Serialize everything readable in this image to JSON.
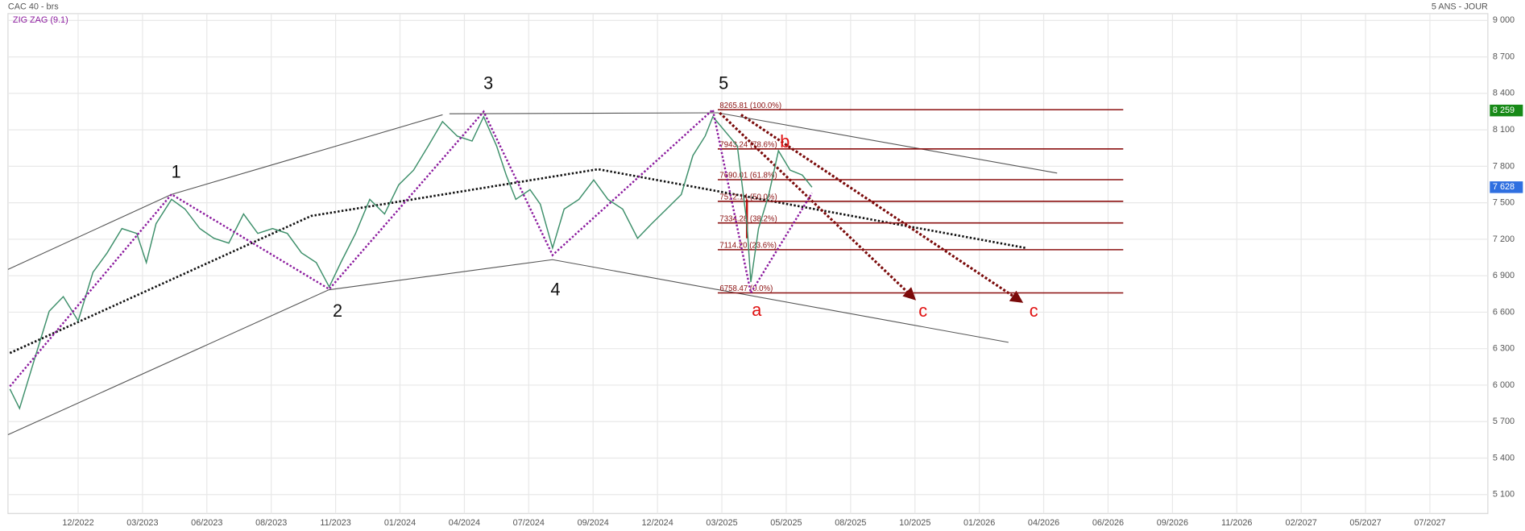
{
  "chart_data": {
    "type": "line",
    "title": "CAC 40 - brs",
    "subtitle": "5 ANS - JOUR",
    "xlim": [
      -1.09,
      21.9
    ],
    "xticks": [
      {
        "value": 0,
        "label": "12/2022"
      },
      {
        "value": 1,
        "label": "03/2023"
      },
      {
        "value": 2,
        "label": "06/2023"
      },
      {
        "value": 3,
        "label": "08/2023"
      },
      {
        "value": 4,
        "label": "11/2023"
      },
      {
        "value": 5,
        "label": "01/2024"
      },
      {
        "value": 6,
        "label": "04/2024"
      },
      {
        "value": 7,
        "label": "07/2024"
      },
      {
        "value": 8,
        "label": "09/2024"
      },
      {
        "value": 9,
        "label": "12/2024"
      },
      {
        "value": 10,
        "label": "03/2025"
      },
      {
        "value": 11,
        "label": "05/2025"
      },
      {
        "value": 12,
        "label": "08/2025"
      },
      {
        "value": 13,
        "label": "10/2025"
      },
      {
        "value": 14,
        "label": "01/2026"
      },
      {
        "value": 15,
        "label": "04/2026"
      },
      {
        "value": 16,
        "label": "06/2026"
      },
      {
        "value": 17,
        "label": "09/2026"
      },
      {
        "value": 18,
        "label": "11/2026"
      },
      {
        "value": 19,
        "label": "02/2027"
      },
      {
        "value": 20,
        "label": "05/2027"
      },
      {
        "value": 21,
        "label": "07/2027"
      }
    ],
    "ylim": [
      4944,
      9056
    ],
    "yticks": [
      {
        "value": 9000,
        "label": "9 000"
      },
      {
        "value": 8700,
        "label": "8 700"
      },
      {
        "value": 8400,
        "label": "8 400"
      },
      {
        "value": 8100,
        "label": "8 100"
      },
      {
        "value": 7800,
        "label": "7 800"
      },
      {
        "value": 7500,
        "label": "7 500"
      },
      {
        "value": 7200,
        "label": "7 200"
      },
      {
        "value": 6900,
        "label": "6 900"
      },
      {
        "value": 6600,
        "label": "6 600"
      },
      {
        "value": 6300,
        "label": "6 300"
      },
      {
        "value": 6000,
        "label": "6 000"
      },
      {
        "value": 5700,
        "label": "5 700"
      },
      {
        "value": 5400,
        "label": "5 400"
      },
      {
        "value": 5100,
        "label": "5 100"
      }
    ],
    "grid": true,
    "series": [
      {
        "color": "#3d8f6a",
        "x": [
          -1.06,
          -0.91,
          -0.68,
          -0.45,
          -0.23,
          0,
          0.23,
          0.45,
          0.68,
          0.91,
          1.06,
          1.21,
          1.45,
          1.66,
          1.89,
          2.11,
          2.34,
          2.57,
          2.79,
          3.02,
          3.25,
          3.47,
          3.7,
          3.9,
          4.08,
          4.31,
          4.53,
          4.76,
          4.98,
          5.21,
          5.44,
          5.66,
          5.89,
          6.12,
          6.3,
          6.5,
          6.65,
          6.8,
          7.02,
          7.18,
          7.37,
          7.55,
          7.78,
          8.01,
          8.23,
          8.46,
          8.69,
          8.91,
          9.14,
          9.37,
          9.55,
          9.74,
          9.86,
          10.05,
          10.24,
          10.39,
          10.45,
          10.57,
          10.73,
          10.88,
          11.06,
          11.25,
          11.4
        ],
        "values": [
          5968,
          5808,
          6208,
          6608,
          6728,
          6528,
          6928,
          7088,
          7288,
          7248,
          7008,
          7328,
          7528,
          7448,
          7288,
          7208,
          7168,
          7408,
          7248,
          7288,
          7248,
          7088,
          7008,
          6808,
          7008,
          7248,
          7528,
          7408,
          7648,
          7768,
          7968,
          8168,
          8048,
          8008,
          8208,
          7968,
          7728,
          7528,
          7608,
          7488,
          7128,
          7448,
          7528,
          7688,
          7528,
          7448,
          7208,
          7328,
          7448,
          7568,
          7888,
          8048,
          8208,
          8088,
          7968,
          7328,
          6848,
          7288,
          7568,
          7928,
          7768,
          7728,
          7628
        ]
      },
      {
        "name": "ZIG ZAG (9.1)",
        "color": "#8b1a9e",
        "x": [
          -1.06,
          1.45,
          3.9,
          6.3,
          7.37,
          9.86,
          10.45,
          11.4
        ],
        "values": [
          5990,
          7570,
          6790,
          8250,
          7070,
          8265.81,
          6758.47,
          7580
        ]
      }
    ],
    "fib_levels": [
      {
        "value": 8265.81,
        "label": "8265.81  (100.0%)"
      },
      {
        "value": 7943.24,
        "label": "7943.24  (78.6%)"
      },
      {
        "value": 7690.01,
        "label": "7690.01  (61.8%)"
      },
      {
        "value": 7512.14,
        "label": "7512.14  (50.0%)"
      },
      {
        "value": 7334.28,
        "label": "7334.28  (38.2%)"
      },
      {
        "value": 7114.2,
        "label": "7114.20  (23.6%)"
      },
      {
        "value": 6758.47,
        "label": "6758.47  (0.0%)"
      }
    ],
    "fib_color": "#8b1010",
    "price_tags": [
      {
        "value": 8259,
        "label": "8 259",
        "color": "#178a17"
      },
      {
        "value": 7628,
        "label": "7 628",
        "color": "#2f6fe0"
      }
    ],
    "wave_labels": [
      {
        "text": "1",
        "color": "#111111"
      },
      {
        "text": "2",
        "color": "#111111"
      },
      {
        "text": "3",
        "color": "#111111"
      },
      {
        "text": "4",
        "color": "#111111"
      },
      {
        "text": "5",
        "color": "#111111"
      },
      {
        "text": "a",
        "color": "#e01010"
      },
      {
        "text": "b",
        "color": "#e01010"
      },
      {
        "text": "c",
        "color": "#e01010"
      },
      {
        "text": "c",
        "color": "#e01010"
      }
    ]
  }
}
